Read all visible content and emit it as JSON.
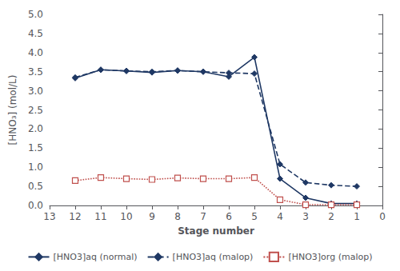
{
  "chart_data": {
    "type": "line",
    "x_label": "Stage number",
    "y_label": "[HNO₃] (mol/L)",
    "x": [
      12,
      11,
      10,
      9,
      8,
      7,
      6,
      5,
      4,
      3,
      2,
      1
    ],
    "series": [
      {
        "name": "[HNO3]aq (normal)",
        "color": "#1f3864",
        "line_style": "solid",
        "marker": "diamond",
        "values": [
          3.33,
          3.55,
          3.52,
          3.48,
          3.53,
          3.5,
          3.37,
          3.88,
          0.7,
          0.2,
          0.05,
          0.05
        ]
      },
      {
        "name": "[HNO3]aq (malop)",
        "color": "#1f3864",
        "line_style": "dashed",
        "marker": "diamond",
        "values": [
          3.35,
          3.55,
          3.52,
          3.5,
          3.53,
          3.5,
          3.47,
          3.45,
          1.08,
          0.6,
          0.53,
          0.5
        ]
      },
      {
        "name": "[HNO3]org (malop)",
        "color": "#c0504d",
        "line_style": "dotted",
        "marker": "square_open",
        "values": [
          0.65,
          0.73,
          0.7,
          0.68,
          0.72,
          0.7,
          0.7,
          0.73,
          0.15,
          0.02,
          0.02,
          0.02
        ]
      }
    ],
    "xlim": [
      13,
      0
    ],
    "ylim": [
      0.0,
      5.0
    ],
    "xticks": [
      13,
      12,
      11,
      10,
      9,
      8,
      7,
      6,
      5,
      4,
      3,
      2,
      1,
      0
    ],
    "yticks": [
      {
        "value": 0,
        "label": "0.0"
      },
      0.5,
      {
        "value": 1,
        "label": "1.0"
      },
      1.5,
      {
        "value": 2,
        "label": "2.0"
      },
      2.5,
      {
        "value": 3,
        "label": "3.0"
      },
      3.5,
      {
        "value": 4,
        "label": "4.0"
      },
      4.5,
      {
        "value": 5,
        "label": "5.0"
      }
    ],
    "grid": false,
    "legend": "bottom"
  }
}
